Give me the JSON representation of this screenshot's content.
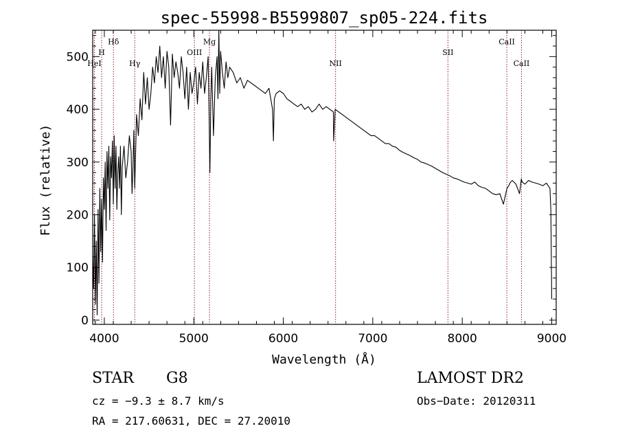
{
  "chart_data": {
    "type": "line",
    "title": "spec-55998-B5599807_sp05-224.fits",
    "xlabel": "Wavelength (Å)",
    "ylabel": "Flux (relative)",
    "xlim": [
      3870,
      9050
    ],
    "ylim": [
      -8,
      550
    ],
    "xticks": [
      4000,
      5000,
      6000,
      7000,
      8000,
      9000
    ],
    "yticks": [
      0,
      100,
      200,
      300,
      400,
      500
    ],
    "grid": false,
    "line_color": "#000000",
    "marker_color": "#8b1a1a",
    "lines": [
      {
        "label": "HeI",
        "wavelength": 3889,
        "label_flux": 482
      },
      {
        "label": "H",
        "wavelength": 3970,
        "label_flux": 503
      },
      {
        "label": "Hδ",
        "wavelength": 4102,
        "label_flux": 523
      },
      {
        "label": "Hγ",
        "wavelength": 4340,
        "label_flux": 482
      },
      {
        "label": "OIII",
        "wavelength": 5007,
        "label_flux": 503
      },
      {
        "label": "Mg",
        "wavelength": 5175,
        "label_flux": 523
      },
      {
        "label": "NII",
        "wavelength": 6584,
        "label_flux": 482
      },
      {
        "label": "SII",
        "wavelength": 7840,
        "label_flux": 503
      },
      {
        "label": "CaII",
        "wavelength": 8498,
        "label_flux": 523
      },
      {
        "label": "CaII",
        "wavelength": 8662,
        "label_flux": 482
      }
    ],
    "series": [
      {
        "x": [
          3870,
          3880,
          3890,
          3900,
          3910,
          3920,
          3930,
          3940,
          3950,
          3960,
          3970,
          3980,
          3990,
          4000,
          4010,
          4020,
          4030,
          4040,
          4050,
          4060,
          4070,
          4080,
          4090,
          4100,
          4110,
          4120,
          4130,
          4140,
          4150,
          4160,
          4170,
          4180,
          4190,
          4200,
          4220,
          4240,
          4260,
          4280,
          4300,
          4310,
          4320,
          4330,
          4340,
          4360,
          4380,
          4400,
          4420,
          4440,
          4460,
          4480,
          4500,
          4520,
          4540,
          4560,
          4580,
          4600,
          4620,
          4640,
          4660,
          4680,
          4700,
          4720,
          4740,
          4760,
          4780,
          4800,
          4820,
          4840,
          4860,
          4880,
          4900,
          4920,
          4940,
          4960,
          4980,
          5000,
          5020,
          5040,
          5060,
          5080,
          5100,
          5120,
          5140,
          5160,
          5170,
          5180,
          5190,
          5200,
          5220,
          5240,
          5260,
          5270,
          5280,
          5290,
          5300,
          5320,
          5340,
          5360,
          5380,
          5400,
          5440,
          5480,
          5520,
          5560,
          5600,
          5640,
          5680,
          5720,
          5760,
          5800,
          5840,
          5880,
          5890,
          5900,
          5920,
          5960,
          6000,
          6040,
          6080,
          6120,
          6160,
          6200,
          6240,
          6280,
          6320,
          6360,
          6400,
          6440,
          6480,
          6520,
          6560,
          6563,
          6580,
          6620,
          6660,
          6700,
          6740,
          6780,
          6820,
          6860,
          6900,
          6940,
          6980,
          7020,
          7060,
          7100,
          7140,
          7180,
          7220,
          7260,
          7300,
          7340,
          7380,
          7420,
          7460,
          7500,
          7540,
          7580,
          7620,
          7660,
          7700,
          7740,
          7780,
          7820,
          7860,
          7900,
          7940,
          7980,
          8020,
          8060,
          8100,
          8140,
          8180,
          8220,
          8260,
          8300,
          8340,
          8380,
          8420,
          8460,
          8500,
          8520,
          8540,
          8560,
          8600,
          8640,
          8660,
          8670,
          8700,
          8740,
          8780,
          8820,
          8860,
          8900,
          8940,
          8980,
          8990,
          9000
        ],
        "y": [
          120,
          60,
          200,
          30,
          150,
          10,
          210,
          70,
          250,
          130,
          230,
          110,
          270,
          210,
          300,
          170,
          320,
          250,
          330,
          190,
          310,
          270,
          340,
          220,
          350,
          250,
          330,
          210,
          280,
          310,
          250,
          330,
          200,
          290,
          330,
          270,
          300,
          350,
          320,
          240,
          290,
          360,
          250,
          390,
          350,
          420,
          380,
          470,
          410,
          460,
          400,
          430,
          480,
          450,
          500,
          470,
          520,
          460,
          500,
          440,
          510,
          480,
          370,
          505,
          460,
          490,
          470,
          440,
          500,
          470,
          420,
          480,
          400,
          470,
          430,
          450,
          480,
          410,
          470,
          440,
          490,
          430,
          460,
          500,
          400,
          280,
          420,
          480,
          350,
          460,
          500,
          420,
          550,
          430,
          510,
          470,
          440,
          490,
          460,
          480,
          470,
          450,
          460,
          440,
          455,
          450,
          445,
          440,
          435,
          430,
          440,
          400,
          340,
          420,
          430,
          435,
          430,
          420,
          415,
          410,
          405,
          410,
          400,
          405,
          395,
          400,
          410,
          400,
          405,
          400,
          395,
          340,
          400,
          395,
          390,
          385,
          380,
          375,
          370,
          365,
          360,
          355,
          350,
          350,
          345,
          340,
          335,
          335,
          330,
          328,
          322,
          318,
          315,
          312,
          308,
          305,
          300,
          298,
          295,
          292,
          288,
          284,
          280,
          277,
          274,
          270,
          268,
          265,
          262,
          260,
          258,
          262,
          255,
          252,
          250,
          245,
          240,
          238,
          240,
          220,
          250,
          255,
          262,
          265,
          258,
          240,
          268,
          262,
          258,
          265,
          262,
          260,
          258,
          255,
          260,
          250,
          210,
          40
        ]
      }
    ]
  },
  "info": {
    "object_class": "STAR",
    "subclass": "G8",
    "survey": "LAMOST DR2",
    "redshift": "cz = −9.3 ± 8.7 km/s",
    "obs_date": "Obs−Date: 20120311",
    "coords": "RA = 217.60631, DEC =  27.20010"
  }
}
